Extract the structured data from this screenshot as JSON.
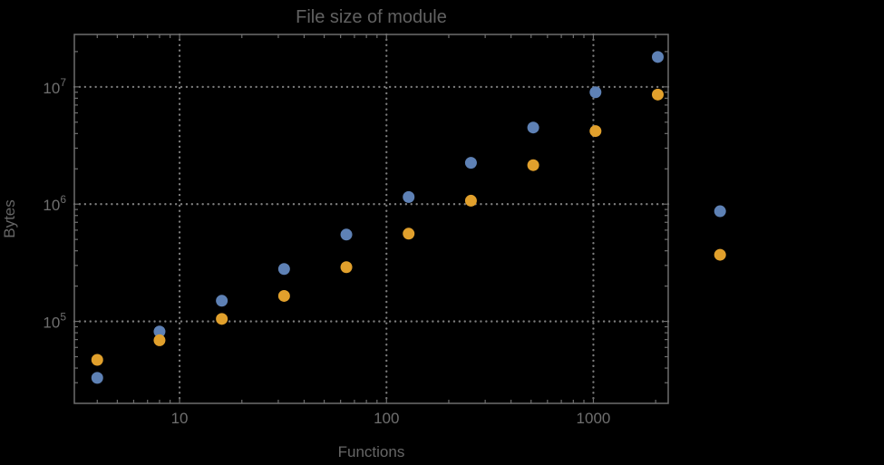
{
  "chart_data": {
    "type": "scatter",
    "title": "File size of module",
    "xlabel": "Functions",
    "ylabel": "Bytes",
    "x_scale": "log",
    "y_scale": "log",
    "grid": "dotted",
    "legend": "none",
    "xlim": [
      3.1,
      2300
    ],
    "ylim": [
      20000,
      28000000
    ],
    "x": [
      4,
      8,
      16,
      32,
      64,
      128,
      256,
      512,
      1024,
      2048,
      4096
    ],
    "series": [
      {
        "name": "blue",
        "color": "#5e81b5",
        "values": [
          33000,
          82000,
          150000,
          280000,
          550000,
          1150000,
          2250000,
          4500000,
          9000000,
          18000000,
          870000
        ]
      },
      {
        "name": "orange",
        "color": "#e1a02c",
        "values": [
          47000,
          69000,
          105000,
          165000,
          290000,
          560000,
          1070000,
          2150000,
          4200000,
          8600000,
          370000
        ]
      }
    ],
    "x_ticks": [
      10,
      100,
      1000
    ],
    "x_tick_labels": [
      "10",
      "100",
      "1000"
    ],
    "y_ticks": [
      100000,
      1000000,
      10000000
    ],
    "y_tick_labels": [
      {
        "base": "10",
        "exp": "5"
      },
      {
        "base": "10",
        "exp": "6"
      },
      {
        "base": "10",
        "exp": "7"
      }
    ],
    "colors": {
      "background": "#000000",
      "frame": "#6e6e6e",
      "grid": "#7d7d7d",
      "title_text": "#616161",
      "tick_text": "#6f6f6f",
      "axis_label_text": "#666666"
    },
    "point_radius": 6.5
  }
}
